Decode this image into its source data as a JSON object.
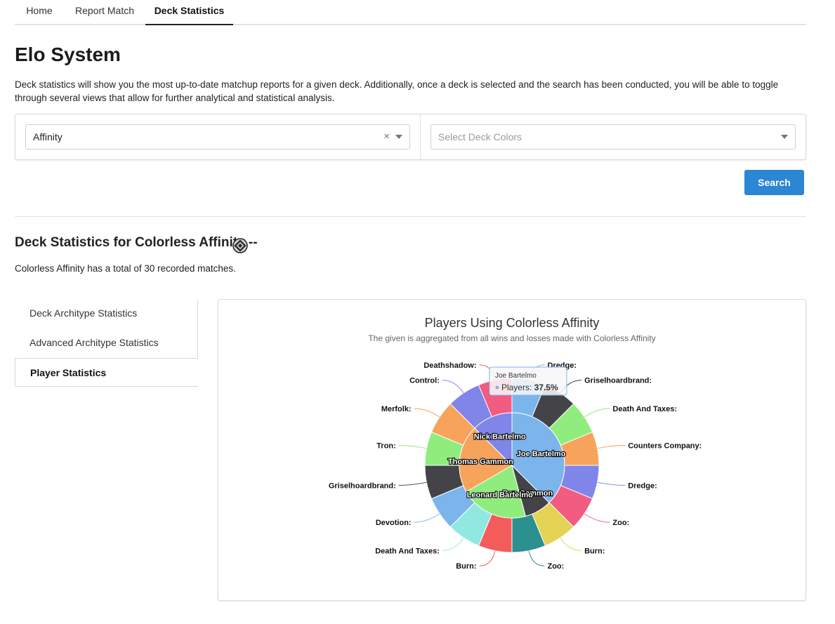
{
  "nav": {
    "tabs": [
      {
        "label": "Home"
      },
      {
        "label": "Report Match"
      },
      {
        "label": "Deck Statistics"
      }
    ]
  },
  "page": {
    "title": "Elo System",
    "intro": "Deck statistics will show you the most up-to-date matchup reports for a given deck. Additionally, once a deck is selected and the search has been conducted, you will be able to toggle through several views that allow for further analytical and statistical analysis."
  },
  "filters": {
    "deck_value": "Affinity",
    "clear_glyph": "×",
    "colors_placeholder": "Select Deck Colors"
  },
  "search_label": "Search",
  "stats": {
    "title": "Deck Statistics for Colorless Affinity --",
    "summary": "Colorless Affinity has a total of 30 recorded matches.",
    "mana_icon": "colorless-mana-icon"
  },
  "side_menu": {
    "items": [
      {
        "label": "Deck Architype Statistics"
      },
      {
        "label": "Advanced Architype Statistics"
      },
      {
        "label": "Player Statistics"
      }
    ]
  },
  "chart_data": {
    "type": "pie",
    "title": "Players Using Colorless Affinity",
    "subtitle": "The given is aggregated from all wins and losses made with Colorless Affinity",
    "inner": [
      {
        "name": "Joe Bartelmo",
        "value": 37.5,
        "color": "#7cb5ec"
      },
      {
        "name": "Ben Gammon",
        "value": 8.3,
        "color": "#434348"
      },
      {
        "name": "Leonard Bartelmo",
        "value": 20.8,
        "color": "#90ed7d"
      },
      {
        "name": "Thomas Gammon",
        "value": 20.8,
        "color": "#f7a35c"
      },
      {
        "name": "Nick Bartelmo",
        "value": 12.5,
        "color": "#8085e9"
      }
    ],
    "outer": [
      {
        "name": "Dredge:",
        "value": 1,
        "color": "#7cb5ec"
      },
      {
        "name": "Griselhoardbrand:",
        "value": 1,
        "color": "#434348"
      },
      {
        "name": "Death And Taxes:",
        "value": 1,
        "color": "#90ed7d"
      },
      {
        "name": "Counters Company:",
        "value": 1,
        "color": "#f7a35c"
      },
      {
        "name": "Dredge:",
        "value": 1,
        "color": "#8085e9"
      },
      {
        "name": "Zoo:",
        "value": 1,
        "color": "#f15c80"
      },
      {
        "name": "Burn:",
        "value": 1,
        "color": "#e4d354"
      },
      {
        "name": "Zoo:",
        "value": 1,
        "color": "#2b908f"
      },
      {
        "name": "Burn:",
        "value": 1,
        "color": "#f45b5b"
      },
      {
        "name": "Death And Taxes:",
        "value": 1,
        "color": "#91e8e1"
      },
      {
        "name": "Devotion:",
        "value": 1,
        "color": "#7cb5ec"
      },
      {
        "name": "Griselhoardbrand:",
        "value": 1,
        "color": "#434348"
      },
      {
        "name": "Tron:",
        "value": 1,
        "color": "#90ed7d"
      },
      {
        "name": "Merfolk:",
        "value": 1,
        "color": "#f7a35c"
      },
      {
        "name": "Control:",
        "value": 1,
        "color": "#8085e9"
      },
      {
        "name": "Deathshadow:",
        "value": 1,
        "color": "#f15c80"
      }
    ],
    "tooltip": {
      "name": "Joe Bartelmo",
      "series": "Players:",
      "value": "37.5%"
    }
  }
}
